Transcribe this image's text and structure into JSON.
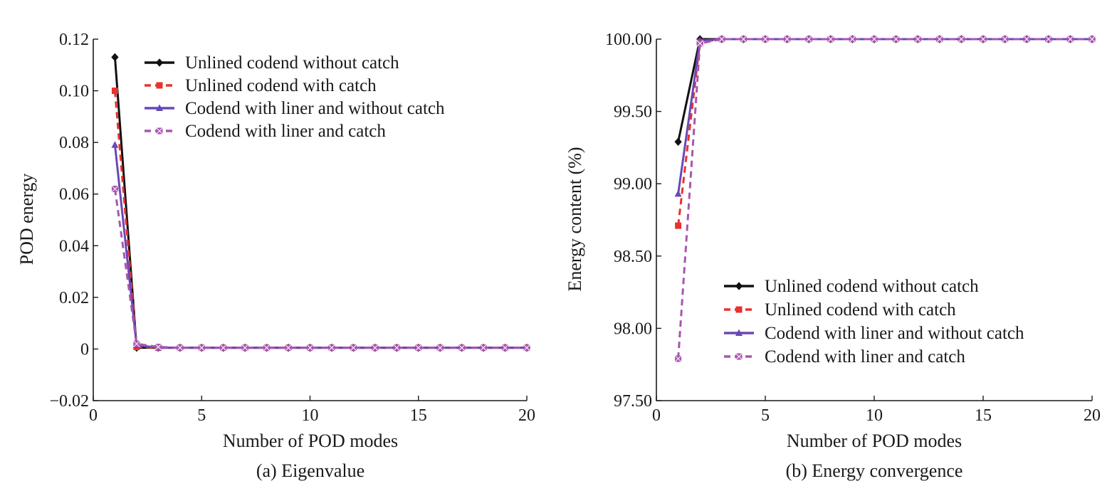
{
  "chart_data": [
    {
      "type": "line",
      "id": "a",
      "caption": "(a) Eigenvalue",
      "xlabel": "Number of POD modes",
      "ylabel": "POD energy",
      "xlim": [
        0,
        20
      ],
      "ylim": [
        -0.02,
        0.12
      ],
      "x_ticks": [
        0,
        5,
        10,
        15,
        20
      ],
      "x_tick_labels": [
        "0",
        "5",
        "10",
        "15",
        "20"
      ],
      "y_ticks": [
        -0.02,
        0,
        0.02,
        0.04,
        0.06,
        0.08,
        0.1,
        0.12
      ],
      "y_tick_labels": [
        "−0.02",
        "0",
        "0.02",
        "0.04",
        "0.06",
        "0.08",
        "0.10",
        "0.12"
      ],
      "grid": false,
      "legend_position": "top-left",
      "x": [
        1,
        2,
        3,
        4,
        5,
        6,
        7,
        8,
        9,
        10,
        11,
        12,
        13,
        14,
        15,
        16,
        17,
        18,
        19,
        20
      ],
      "series": [
        {
          "name": "Unlined codend without catch",
          "color": "#111111",
          "dash": "solid",
          "marker": "diamond",
          "values": [
            0.113,
            0.0005,
            0.0005,
            0.0005,
            0.0005,
            0.0005,
            0.0005,
            0.0005,
            0.0005,
            0.0005,
            0.0005,
            0.0005,
            0.0005,
            0.0005,
            0.0005,
            0.0005,
            0.0005,
            0.0005,
            0.0005,
            0.0005
          ]
        },
        {
          "name": "Unlined codend with catch",
          "color": "#e8322d",
          "dash": "dashed",
          "marker": "square",
          "values": [
            0.1,
            0.0008,
            0.0005,
            0.0005,
            0.0005,
            0.0005,
            0.0005,
            0.0005,
            0.0005,
            0.0005,
            0.0005,
            0.0005,
            0.0005,
            0.0005,
            0.0005,
            0.0005,
            0.0005,
            0.0005,
            0.0005,
            0.0005
          ]
        },
        {
          "name": "Codend with liner and without catch",
          "color": "#6a48b5",
          "dash": "solid",
          "marker": "triangle",
          "values": [
            0.079,
            0.0015,
            0.0005,
            0.0005,
            0.0005,
            0.0005,
            0.0005,
            0.0005,
            0.0005,
            0.0005,
            0.0005,
            0.0005,
            0.0005,
            0.0005,
            0.0005,
            0.0005,
            0.0005,
            0.0005,
            0.0005,
            0.0005
          ]
        },
        {
          "name": "Codend with liner and catch",
          "color": "#a955b0",
          "dash": "dashed",
          "marker": "square-cross",
          "values": [
            0.062,
            0.002,
            0.0008,
            0.0005,
            0.0005,
            0.0005,
            0.0005,
            0.0005,
            0.0005,
            0.0005,
            0.0005,
            0.0005,
            0.0005,
            0.0005,
            0.0005,
            0.0005,
            0.0005,
            0.0005,
            0.0005,
            0.0005
          ]
        }
      ]
    },
    {
      "type": "line",
      "id": "b",
      "caption": "(b) Energy convergence",
      "xlabel": "Number of POD modes",
      "ylabel": "Energy content (%)",
      "xlim": [
        0,
        20
      ],
      "ylim": [
        97.5,
        100.0
      ],
      "x_ticks": [
        0,
        5,
        10,
        15,
        20
      ],
      "x_tick_labels": [
        "0",
        "5",
        "10",
        "15",
        "20"
      ],
      "y_ticks": [
        97.5,
        98.0,
        98.5,
        99.0,
        99.5,
        100.0
      ],
      "y_tick_labels": [
        "97.50",
        "98.00",
        "98.50",
        "99.00",
        "99.50",
        "100.00"
      ],
      "grid": false,
      "legend_position": "bottom-right",
      "x": [
        1,
        2,
        3,
        4,
        5,
        6,
        7,
        8,
        9,
        10,
        11,
        12,
        13,
        14,
        15,
        16,
        17,
        18,
        19,
        20
      ],
      "series": [
        {
          "name": "Unlined codend without catch",
          "color": "#111111",
          "dash": "solid",
          "marker": "diamond",
          "values": [
            99.29,
            100.0,
            100.0,
            100.0,
            100.0,
            100.0,
            100.0,
            100.0,
            100.0,
            100.0,
            100.0,
            100.0,
            100.0,
            100.0,
            100.0,
            100.0,
            100.0,
            100.0,
            100.0,
            100.0
          ]
        },
        {
          "name": "Unlined codend with catch",
          "color": "#e8322d",
          "dash": "dashed",
          "marker": "square",
          "values": [
            98.71,
            99.98,
            100.0,
            100.0,
            100.0,
            100.0,
            100.0,
            100.0,
            100.0,
            100.0,
            100.0,
            100.0,
            100.0,
            100.0,
            100.0,
            100.0,
            100.0,
            100.0,
            100.0,
            100.0
          ]
        },
        {
          "name": "Codend with liner and without catch",
          "color": "#6a48b5",
          "dash": "solid",
          "marker": "triangle",
          "values": [
            98.93,
            99.99,
            100.0,
            100.0,
            100.0,
            100.0,
            100.0,
            100.0,
            100.0,
            100.0,
            100.0,
            100.0,
            100.0,
            100.0,
            100.0,
            100.0,
            100.0,
            100.0,
            100.0,
            100.0
          ]
        },
        {
          "name": "Codend with liner and catch",
          "color": "#a955b0",
          "dash": "dashed",
          "marker": "square-cross",
          "values": [
            97.79,
            99.97,
            100.0,
            100.0,
            100.0,
            100.0,
            100.0,
            100.0,
            100.0,
            100.0,
            100.0,
            100.0,
            100.0,
            100.0,
            100.0,
            100.0,
            100.0,
            100.0,
            100.0,
            100.0
          ]
        }
      ]
    }
  ]
}
